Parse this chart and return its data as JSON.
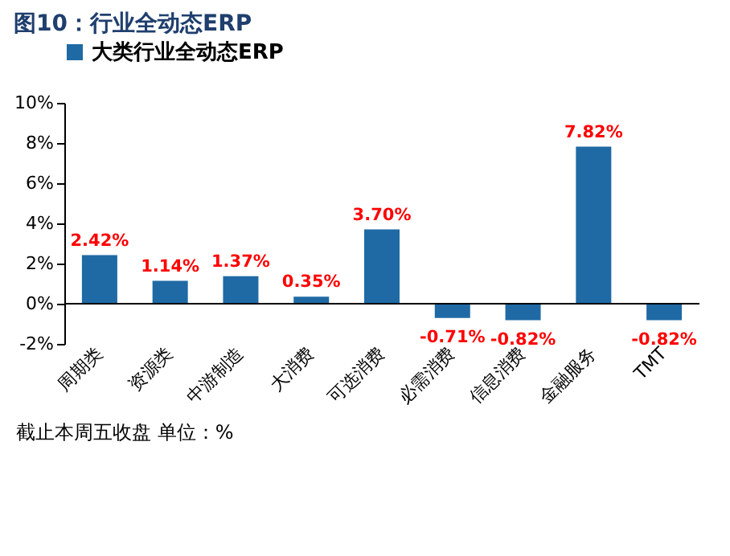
{
  "chart_data": {
    "type": "bar",
    "title": "图10：行业全动态ERP",
    "categories": [
      "周期类",
      "资源类",
      "中游制造",
      "大消费",
      "可选消费",
      "必需消费",
      "信息消费",
      "金融服务",
      "TMT"
    ],
    "series": [
      {
        "name": "大类行业全动态ERP",
        "color": "#1f6aa5",
        "values": [
          2.42,
          1.14,
          1.37,
          0.35,
          3.7,
          -0.71,
          -0.82,
          7.82,
          -0.82
        ],
        "value_labels": [
          "2.42%",
          "1.14%",
          "1.37%",
          "0.35%",
          "3.70%",
          "-0.71%",
          "-0.82%",
          "7.82%",
          "-0.82%"
        ]
      }
    ],
    "ylim": [
      -2,
      10
    ],
    "yticks": [
      {
        "value": -2,
        "label": "-2%"
      },
      {
        "value": 0,
        "label": "0%"
      },
      {
        "value": 2,
        "label": "2%"
      },
      {
        "value": 4,
        "label": "4%"
      },
      {
        "value": 6,
        "label": "6%"
      },
      {
        "value": 8,
        "label": "8%"
      },
      {
        "value": 10,
        "label": "10%"
      }
    ],
    "grid": false,
    "legend": "top",
    "annotations": [
      "截止本周五收盘 单位：%"
    ]
  }
}
